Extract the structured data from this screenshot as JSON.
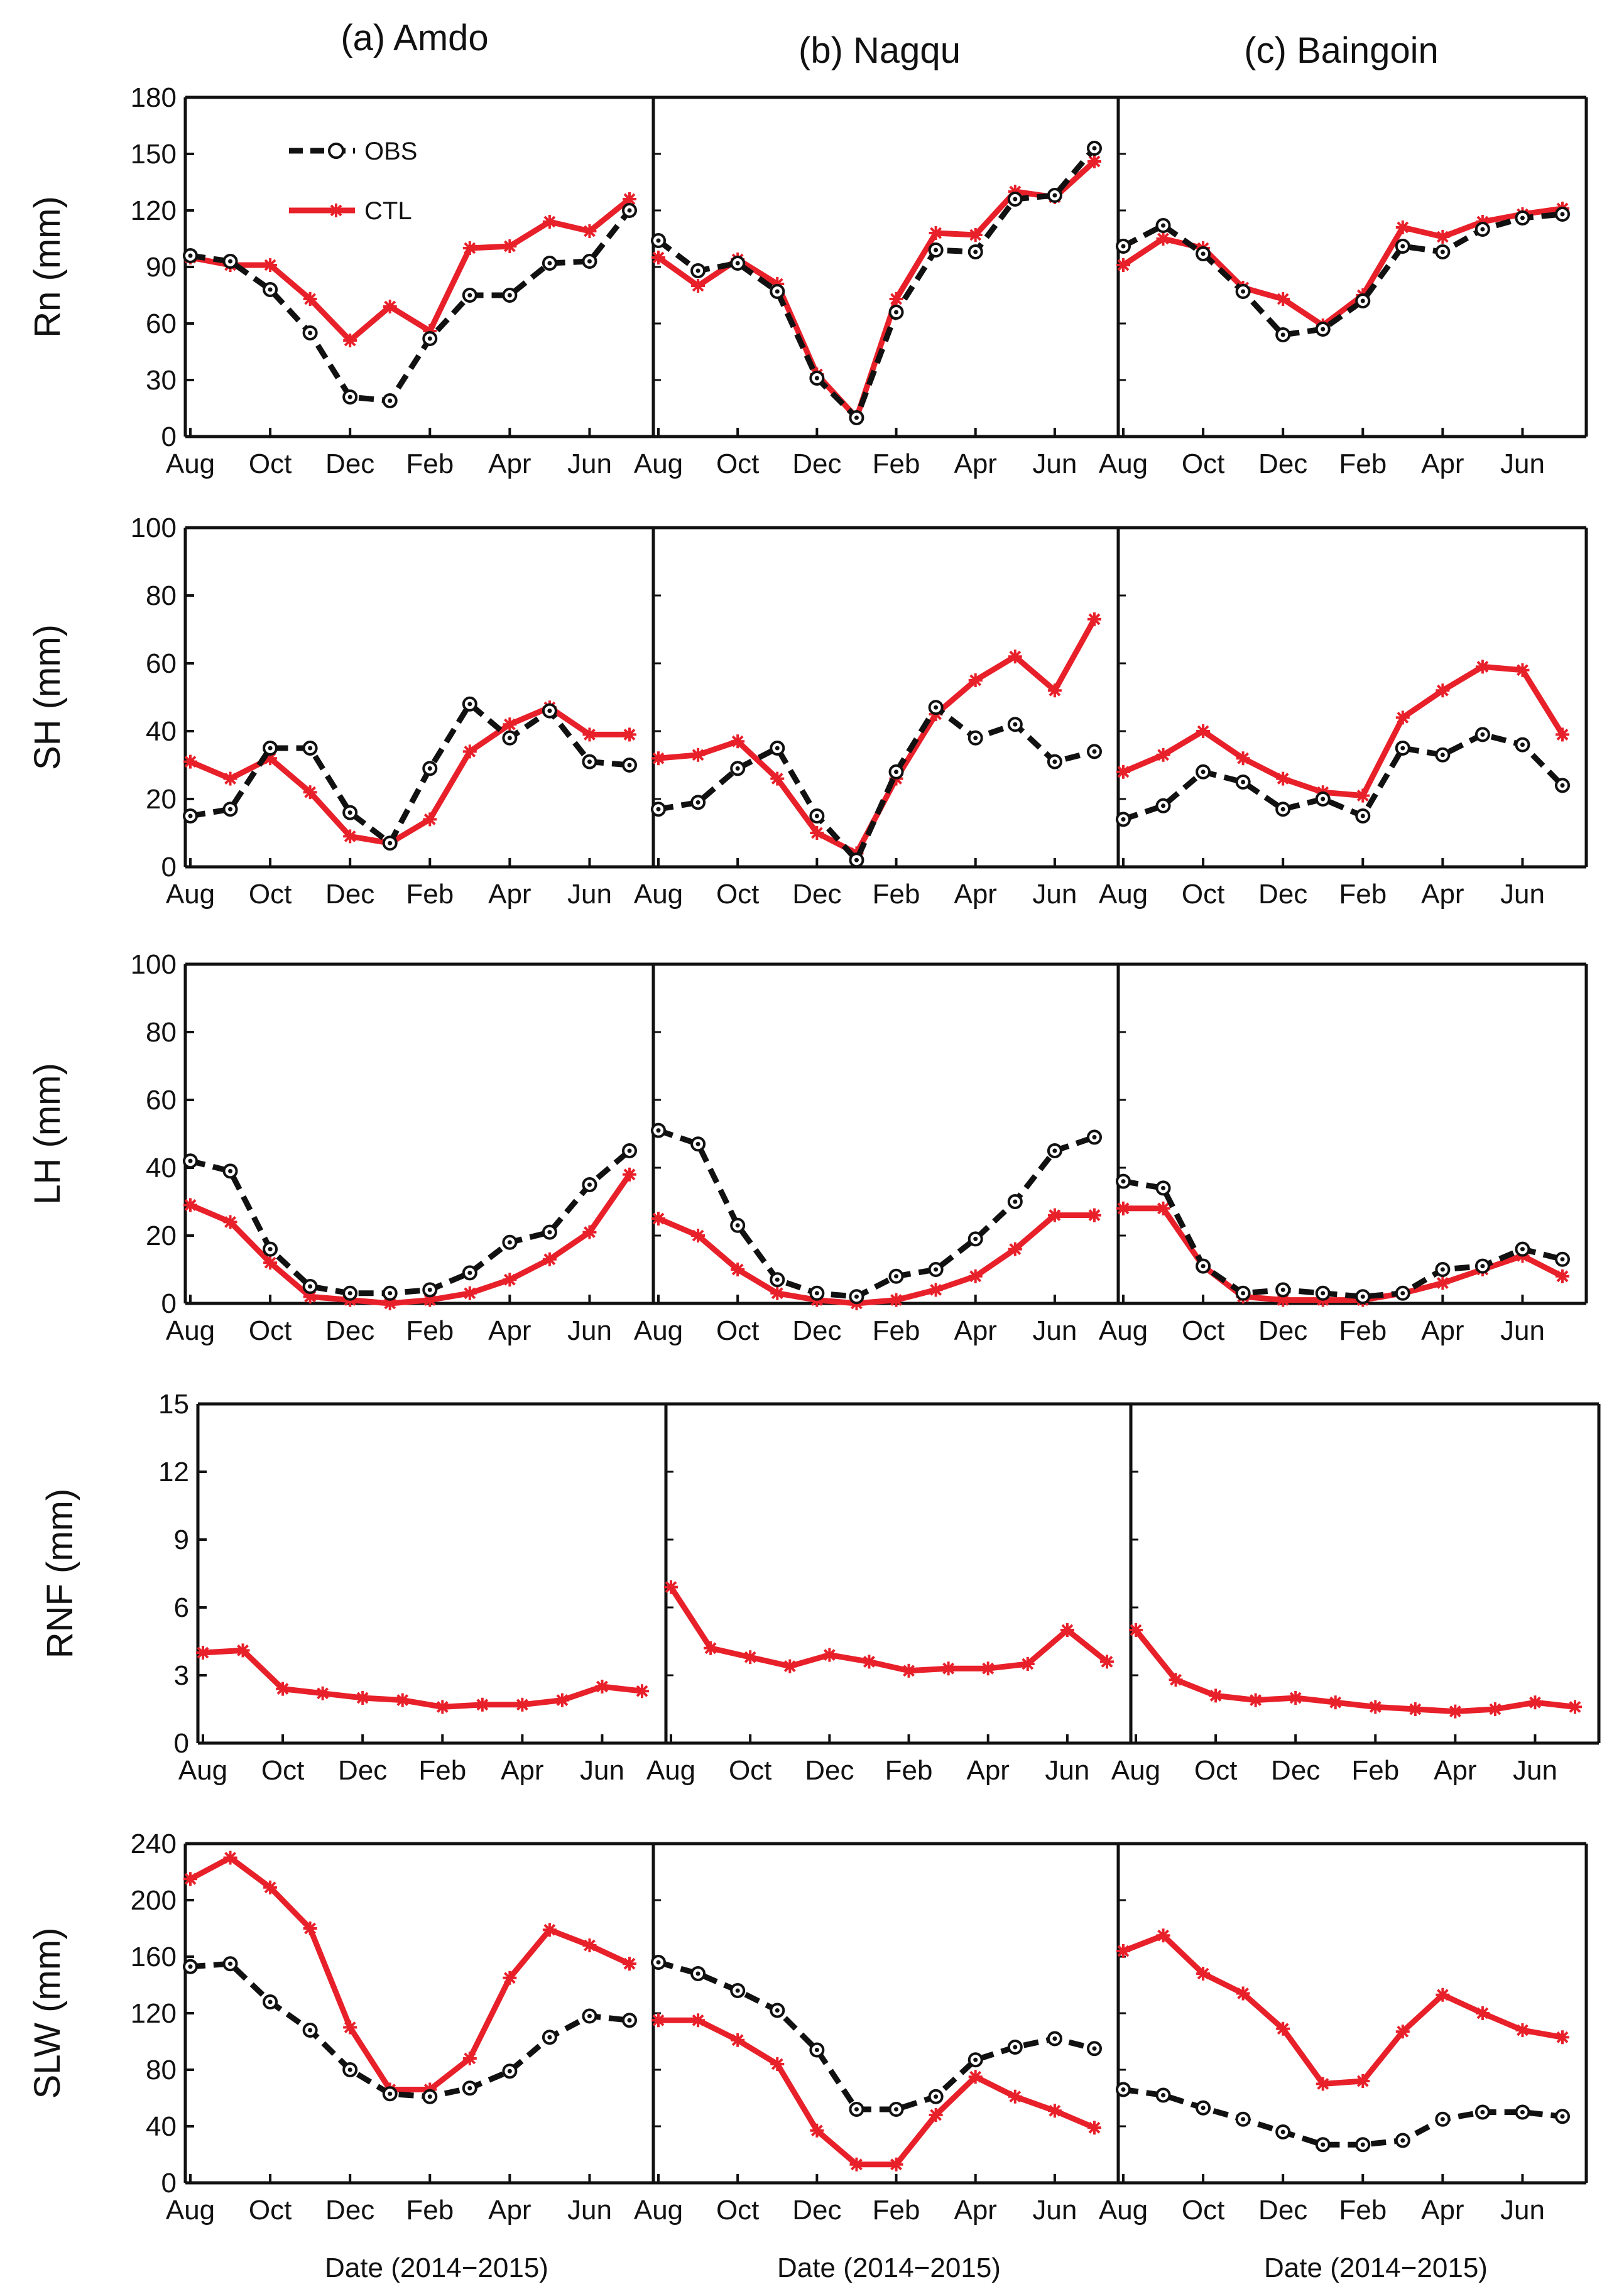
{
  "figure": {
    "columns": [
      "(a) Amdo",
      "(b) Nagqu",
      "(c) Baingoin"
    ],
    "month_ticks": [
      "Aug",
      "Oct",
      "Dec",
      "Feb",
      "Apr",
      "Jun"
    ],
    "xlabel": "Date (2014−2015)",
    "legend": [
      {
        "name": "OBS",
        "color": "#111111",
        "style": "dashed",
        "marker": "circle"
      },
      {
        "name": "CTL",
        "color": "#e8202a",
        "style": "solid",
        "marker": "star"
      }
    ]
  },
  "chart_data": [
    {
      "type": "line",
      "title": "(a) Amdo",
      "ylabel": "Rn (mm)",
      "ylim": [
        0,
        180
      ],
      "yticks": [
        0,
        30,
        60,
        90,
        120,
        150,
        180
      ],
      "x": [
        0,
        1,
        2,
        3,
        4,
        5,
        6,
        7,
        8,
        9,
        10,
        11
      ],
      "series": [
        {
          "name": "OBS",
          "values": [
            96,
            93,
            78,
            55,
            21,
            19,
            52,
            75,
            75,
            92,
            93,
            120
          ]
        },
        {
          "name": "CTL",
          "values": [
            95,
            91,
            91,
            73,
            51,
            69,
            56,
            100,
            101,
            114,
            109,
            126
          ]
        }
      ]
    },
    {
      "type": "line",
      "title": "(b) Nagqu",
      "ylabel": "Rn (mm)",
      "ylim": [
        0,
        180
      ],
      "yticks": [
        0,
        30,
        60,
        90,
        120,
        150,
        180
      ],
      "x": [
        0,
        1,
        2,
        3,
        4,
        5,
        6,
        7,
        8,
        9,
        10,
        11
      ],
      "series": [
        {
          "name": "OBS",
          "values": [
            104,
            88,
            92,
            77,
            31,
            10,
            66,
            99,
            98,
            126,
            128,
            153
          ]
        },
        {
          "name": "CTL",
          "values": [
            95,
            80,
            94,
            81,
            33,
            10,
            73,
            108,
            107,
            130,
            127,
            146
          ]
        }
      ]
    },
    {
      "type": "line",
      "title": "(c) Baingoin",
      "ylabel": "Rn (mm)",
      "ylim": [
        0,
        180
      ],
      "yticks": [
        0,
        30,
        60,
        90,
        120,
        150,
        180
      ],
      "x": [
        0,
        1,
        2,
        3,
        4,
        5,
        6,
        7,
        8,
        9,
        10,
        11
      ],
      "series": [
        {
          "name": "OBS",
          "values": [
            101,
            112,
            97,
            77,
            54,
            57,
            72,
            101,
            98,
            110,
            116,
            118
          ]
        },
        {
          "name": "CTL",
          "values": [
            91,
            105,
            100,
            79,
            73,
            59,
            75,
            111,
            106,
            114,
            118,
            121
          ]
        }
      ]
    },
    {
      "type": "line",
      "title": "(a) Amdo",
      "ylabel": "SH (mm)",
      "ylim": [
        0,
        100
      ],
      "yticks": [
        0,
        20,
        40,
        60,
        80,
        100
      ],
      "x": [
        0,
        1,
        2,
        3,
        4,
        5,
        6,
        7,
        8,
        9,
        10,
        11
      ],
      "series": [
        {
          "name": "OBS",
          "values": [
            15,
            17,
            35,
            35,
            16,
            7,
            29,
            48,
            38,
            46,
            31,
            30
          ]
        },
        {
          "name": "CTL",
          "values": [
            31,
            26,
            32,
            22,
            9,
            7,
            14,
            34,
            42,
            47,
            39,
            39
          ]
        }
      ]
    },
    {
      "type": "line",
      "title": "(b) Nagqu",
      "ylabel": "SH (mm)",
      "ylim": [
        0,
        100
      ],
      "yticks": [
        0,
        20,
        40,
        60,
        80,
        100
      ],
      "x": [
        0,
        1,
        2,
        3,
        4,
        5,
        6,
        7,
        8,
        9,
        10,
        11
      ],
      "series": [
        {
          "name": "OBS",
          "values": [
            17,
            19,
            29,
            35,
            15,
            2,
            28,
            47,
            38,
            42,
            31,
            34
          ]
        },
        {
          "name": "CTL",
          "values": [
            32,
            33,
            37,
            26,
            10,
            4,
            26,
            45,
            55,
            62,
            52,
            73
          ]
        }
      ]
    },
    {
      "type": "line",
      "title": "(c) Baingoin",
      "ylabel": "SH (mm)",
      "ylim": [
        0,
        100
      ],
      "yticks": [
        0,
        20,
        40,
        60,
        80,
        100
      ],
      "x": [
        0,
        1,
        2,
        3,
        4,
        5,
        6,
        7,
        8,
        9,
        10,
        11
      ],
      "series": [
        {
          "name": "OBS",
          "values": [
            14,
            18,
            28,
            25,
            17,
            20,
            15,
            35,
            33,
            39,
            36,
            24
          ]
        },
        {
          "name": "CTL",
          "values": [
            28,
            33,
            40,
            32,
            26,
            22,
            21,
            44,
            52,
            59,
            58,
            39
          ]
        }
      ]
    },
    {
      "type": "line",
      "title": "(a) Amdo",
      "ylabel": "LH (mm)",
      "ylim": [
        0,
        100
      ],
      "yticks": [
        0,
        20,
        40,
        60,
        80,
        100
      ],
      "x": [
        0,
        1,
        2,
        3,
        4,
        5,
        6,
        7,
        8,
        9,
        10,
        11
      ],
      "series": [
        {
          "name": "OBS",
          "values": [
            42,
            39,
            16,
            5,
            3,
            3,
            4,
            9,
            18,
            21,
            35,
            45
          ]
        },
        {
          "name": "CTL",
          "values": [
            29,
            24,
            12,
            2,
            1,
            0,
            1,
            3,
            7,
            13,
            21,
            38
          ]
        }
      ]
    },
    {
      "type": "line",
      "title": "(b) Nagqu",
      "ylabel": "LH (mm)",
      "ylim": [
        0,
        100
      ],
      "yticks": [
        0,
        20,
        40,
        60,
        80,
        100
      ],
      "x": [
        0,
        1,
        2,
        3,
        4,
        5,
        6,
        7,
        8,
        9,
        10,
        11
      ],
      "series": [
        {
          "name": "OBS",
          "values": [
            51,
            47,
            23,
            7,
            3,
            2,
            8,
            10,
            19,
            30,
            45,
            49
          ]
        },
        {
          "name": "CTL",
          "values": [
            25,
            20,
            10,
            3,
            1,
            0,
            1,
            4,
            8,
            16,
            26,
            26
          ]
        }
      ]
    },
    {
      "type": "line",
      "title": "(c) Baingoin",
      "ylabel": "LH (mm)",
      "ylim": [
        0,
        100
      ],
      "yticks": [
        0,
        20,
        40,
        60,
        80,
        100
      ],
      "x": [
        0,
        1,
        2,
        3,
        4,
        5,
        6,
        7,
        8,
        9,
        10,
        11
      ],
      "series": [
        {
          "name": "OBS",
          "values": [
            36,
            34,
            11,
            3,
            4,
            3,
            2,
            3,
            10,
            11,
            16,
            13
          ]
        },
        {
          "name": "CTL",
          "values": [
            28,
            28,
            11,
            2,
            1,
            1,
            1,
            3,
            6,
            10,
            14,
            8
          ]
        }
      ]
    },
    {
      "type": "line",
      "title": "(a) Amdo",
      "ylabel": "RNF (mm)",
      "ylim": [
        0,
        15
      ],
      "yticks": [
        0,
        3,
        6,
        9,
        12,
        15
      ],
      "x": [
        0,
        1,
        2,
        3,
        4,
        5,
        6,
        7,
        8,
        9,
        10,
        11
      ],
      "series": [
        {
          "name": "CTL",
          "values": [
            4.0,
            4.1,
            2.4,
            2.2,
            2.0,
            1.9,
            1.6,
            1.7,
            1.7,
            1.9,
            2.5,
            2.3
          ]
        }
      ]
    },
    {
      "type": "line",
      "title": "(b) Nagqu",
      "ylabel": "RNF (mm)",
      "ylim": [
        0,
        15
      ],
      "yticks": [
        0,
        3,
        6,
        9,
        12,
        15
      ],
      "x": [
        0,
        1,
        2,
        3,
        4,
        5,
        6,
        7,
        8,
        9,
        10,
        11
      ],
      "series": [
        {
          "name": "CTL",
          "values": [
            6.9,
            4.2,
            3.8,
            3.4,
            3.9,
            3.6,
            3.2,
            3.3,
            3.3,
            3.5,
            5.0,
            3.6
          ]
        }
      ]
    },
    {
      "type": "line",
      "title": "(c) Baingoin",
      "ylabel": "RNF (mm)",
      "ylim": [
        0,
        15
      ],
      "yticks": [
        0,
        3,
        6,
        9,
        12,
        15
      ],
      "x": [
        0,
        1,
        2,
        3,
        4,
        5,
        6,
        7,
        8,
        9,
        10,
        11
      ],
      "series": [
        {
          "name": "CTL",
          "values": [
            5.0,
            2.8,
            2.1,
            1.9,
            2.0,
            1.8,
            1.6,
            1.5,
            1.4,
            1.5,
            1.8,
            1.6
          ]
        }
      ]
    },
    {
      "type": "line",
      "title": "(a) Amdo",
      "ylabel": "SLW (mm)",
      "ylim": [
        0,
        240
      ],
      "yticks": [
        0,
        40,
        80,
        120,
        160,
        200,
        240
      ],
      "x": [
        0,
        1,
        2,
        3,
        4,
        5,
        6,
        7,
        8,
        9,
        10,
        11
      ],
      "series": [
        {
          "name": "OBS",
          "values": [
            153,
            155,
            128,
            108,
            80,
            63,
            61,
            67,
            79,
            103,
            118,
            115
          ]
        },
        {
          "name": "CTL",
          "values": [
            215,
            230,
            209,
            180,
            110,
            66,
            66,
            88,
            145,
            179,
            168,
            155
          ]
        }
      ]
    },
    {
      "type": "line",
      "title": "(b) Nagqu",
      "ylabel": "SLW (mm)",
      "ylim": [
        0,
        240
      ],
      "yticks": [
        0,
        40,
        80,
        120,
        160,
        200,
        240
      ],
      "x": [
        0,
        1,
        2,
        3,
        4,
        5,
        6,
        7,
        8,
        9,
        10,
        11
      ],
      "series": [
        {
          "name": "OBS",
          "values": [
            156,
            148,
            136,
            122,
            94,
            52,
            52,
            61,
            87,
            96,
            102,
            95
          ]
        },
        {
          "name": "CTL",
          "values": [
            115,
            115,
            101,
            84,
            37,
            13,
            13,
            48,
            75,
            61,
            51,
            39
          ]
        }
      ]
    },
    {
      "type": "line",
      "title": "(c) Baingoin",
      "ylabel": "SLW (mm)",
      "ylim": [
        0,
        240
      ],
      "yticks": [
        0,
        40,
        80,
        120,
        160,
        200,
        240
      ],
      "x": [
        0,
        1,
        2,
        3,
        4,
        5,
        6,
        7,
        8,
        9,
        10,
        11
      ],
      "series": [
        {
          "name": "OBS",
          "values": [
            66,
            62,
            53,
            45,
            36,
            27,
            27,
            30,
            45,
            50,
            50,
            47
          ]
        },
        {
          "name": "CTL",
          "values": [
            164,
            175,
            148,
            134,
            109,
            70,
            72,
            107,
            133,
            120,
            108,
            103
          ]
        }
      ]
    }
  ]
}
